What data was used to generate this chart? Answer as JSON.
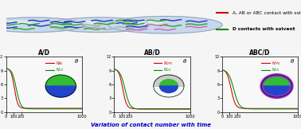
{
  "title_bottom": "Variation of contact number with time",
  "title_bottom_color": "#0000cc",
  "legend_red_label": "A, AB or ABC contact with solvent",
  "legend_green_label": "D contacts with solvent",
  "subplot_titles": [
    "A/D",
    "AB/D",
    "ABC/D"
  ],
  "red_color": "#cc0000",
  "green_color": "#008800",
  "plot1_legend_red": "$N_{AS}$",
  "plot1_legend_green": "$N_{DS}$",
  "plot2_legend_red": "$N_{DPS}$",
  "plot2_legend_green": "$N_{DS}$",
  "plot3_legend_red": "$N_{TPS}$",
  "plot3_legend_green": "$N_{DS}$",
  "bg_top": "#f5f5f5",
  "bg_plot": "#f8f8f8",
  "droplet_color": "#c8d8ee",
  "droplet_edge": "#99aabb",
  "blue_chain": "#2233bb",
  "green_chain": "#22aa22",
  "gray_chain": "#aaaaaa",
  "pink_chain": "#cc66aa",
  "janus_green": "#33bb33",
  "janus_blue": "#2244cc",
  "janus_gray": "#cccccc",
  "janus_purple": "#9933cc"
}
